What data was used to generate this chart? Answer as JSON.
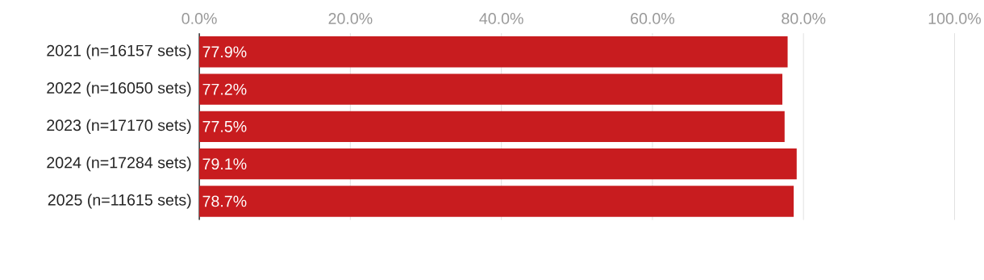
{
  "chart_data": {
    "type": "bar",
    "orientation": "horizontal",
    "categories": [
      "2021 (n=16157 sets)",
      "2022 (n=16050 sets)",
      "2023 (n=17170 sets)",
      "2024 (n=17284 sets)",
      "2025 (n=11615 sets)"
    ],
    "values": [
      77.9,
      77.2,
      77.5,
      79.1,
      78.7
    ],
    "value_labels": [
      "77.9%",
      "77.2%",
      "77.5%",
      "79.1%",
      "78.7%"
    ],
    "color": "#c81c1f",
    "xlim": [
      0,
      100
    ],
    "xticks": [
      {
        "value": 0,
        "label": "0.0%"
      },
      {
        "value": 20,
        "label": "20.0%"
      },
      {
        "value": 40,
        "label": "40.0%"
      },
      {
        "value": 60,
        "label": "60.0%"
      },
      {
        "value": 80,
        "label": "80.0%"
      },
      {
        "value": 100,
        "label": "100.0%"
      }
    ],
    "grid": "x"
  }
}
